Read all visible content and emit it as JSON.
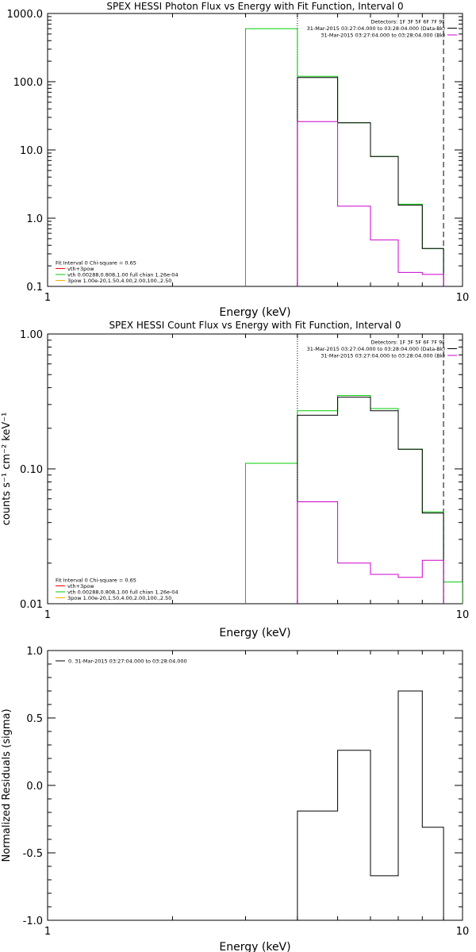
{
  "chart_data": [
    {
      "type": "line",
      "title": "SPEX HESSI Photon Flux vs Energy with Fit Function, Interval 0",
      "xlabel": "Energy (keV)",
      "ylabel": "",
      "xlim": [
        1,
        10
      ],
      "ylim": [
        0.1,
        1000
      ],
      "x_scale": "log",
      "y_scale": "log",
      "x_ticks": [
        {
          "v": 1,
          "label": "1"
        },
        {
          "v": 10,
          "label": "10"
        }
      ],
      "y_ticks": [
        {
          "v": 0.1,
          "label": "0.1"
        },
        {
          "v": 1,
          "label": "1.0"
        },
        {
          "v": 10,
          "label": "10.0"
        },
        {
          "v": 100,
          "label": "100.0"
        },
        {
          "v": 1000,
          "label": "1000.0"
        }
      ],
      "vlines": [
        {
          "x": 4.0,
          "style": "dotted"
        },
        {
          "x": 9.0,
          "style": "dashed"
        }
      ],
      "legend_top": {
        "position": "top-right",
        "lines": [
          {
            "text": "Detectors: 1F 3F 5F 6F 7F 9F",
            "color": ""
          },
          {
            "text": "31-Mar-2015 03:27:04.000 to 03:28:04.000 (Data-Bk)",
            "color": "#000000"
          },
          {
            "text": "31-Mar-2015 03:27:04.000 to 03:28:04.000 (Bk)",
            "color": "#cc00cc"
          }
        ]
      },
      "legend_bottom": {
        "position": "bottom-left",
        "lines": [
          {
            "text": "Fit Interval 0   Chi-square = 0.65",
            "color": ""
          },
          {
            "text": "vth+3pow",
            "color": "#ff0000"
          },
          {
            "text": "vth 0.00288,0.808,1.00  full chian 1.26e-04",
            "color": "#00cc00"
          },
          {
            "text": "3pow 1.00e-20,1.50,4.00,2.00,100.,2.50",
            "color": "#ffaa00"
          }
        ]
      },
      "series": [
        {
          "color": "#00cc00",
          "edges": [
            3.0,
            4.0,
            5.0,
            6.0,
            7.0,
            8.0,
            9.0
          ],
          "values": [
            600,
            120,
            25,
            8,
            1.6,
            0.36
          ]
        },
        {
          "color": "#000000",
          "edges": [
            4.0,
            5.0,
            6.0,
            7.0,
            8.0,
            9.0
          ],
          "values": [
            115,
            25,
            8,
            1.55,
            0.36
          ]
        },
        {
          "color": "#cc00cc",
          "edges": [
            4.0,
            5.0,
            6.0,
            7.0,
            8.0,
            9.0
          ],
          "values": [
            26,
            1.5,
            0.48,
            0.16,
            0.15
          ]
        }
      ]
    },
    {
      "type": "line",
      "title": "SPEX HESSI Count Flux vs Energy with Fit Function, Interval 0",
      "xlabel": "Energy (keV)",
      "ylabel": "counts s⁻¹ cm⁻² keV⁻¹",
      "xlim": [
        1,
        10
      ],
      "ylim": [
        0.01,
        1.0
      ],
      "x_scale": "log",
      "y_scale": "log",
      "x_ticks": [
        {
          "v": 1,
          "label": "1"
        },
        {
          "v": 10,
          "label": "10"
        }
      ],
      "y_ticks": [
        {
          "v": 0.01,
          "label": "0.01"
        },
        {
          "v": 0.1,
          "label": "0.10"
        },
        {
          "v": 1,
          "label": "1.00"
        }
      ],
      "vlines": [
        {
          "x": 4.0,
          "style": "dotted"
        },
        {
          "x": 9.0,
          "style": "dashed"
        }
      ],
      "legend_top": {
        "position": "top-right",
        "lines": [
          {
            "text": "Detectors: 1F 3F 5F 6F 7F 9F",
            "color": ""
          },
          {
            "text": "31-Mar-2015 03:27:04.000 to 03:28:04.000 (Data-Bk)",
            "color": "#000000"
          },
          {
            "text": "31-Mar-2015 03:27:04.000 to 03:28:04.000 (Bk)",
            "color": "#cc00cc"
          }
        ]
      },
      "legend_bottom": {
        "position": "bottom-left",
        "lines": [
          {
            "text": "Fit Interval 0   Chi-square = 0.65",
            "color": ""
          },
          {
            "text": "vth+3pow",
            "color": "#ff0000"
          },
          {
            "text": "vth 0.00288,0.808,1.00  full chian 1.26e-04",
            "color": "#00cc00"
          },
          {
            "text": "3pow 1.00e-20,1.50,4.00,2.00,100.,2.50",
            "color": "#ffaa00"
          }
        ]
      },
      "series": [
        {
          "color": "#00cc00",
          "edges": [
            3.0,
            4.0,
            5.0,
            6.0,
            7.0,
            8.0,
            9.0,
            10.0
          ],
          "values": [
            0.11,
            0.27,
            0.35,
            0.28,
            0.14,
            0.048,
            0.0145
          ]
        },
        {
          "color": "#000000",
          "edges": [
            4.0,
            5.0,
            6.0,
            7.0,
            8.0,
            9.0
          ],
          "values": [
            0.25,
            0.34,
            0.27,
            0.14,
            0.047
          ]
        },
        {
          "color": "#cc00cc",
          "edges": [
            4.0,
            5.0,
            6.0,
            7.0,
            8.0,
            9.0
          ],
          "values": [
            0.057,
            0.02,
            0.0165,
            0.0157,
            0.021
          ]
        }
      ]
    },
    {
      "type": "line",
      "title": "",
      "xlabel": "Energy (keV)",
      "ylabel": "Normalized Residuals (sigma)",
      "xlim": [
        1,
        10
      ],
      "ylim": [
        -1.0,
        1.0
      ],
      "x_scale": "log",
      "y_scale": "linear",
      "x_ticks": [
        {
          "v": 1,
          "label": "1"
        },
        {
          "v": 10,
          "label": "10"
        }
      ],
      "y_ticks": [
        {
          "v": -1.0,
          "label": "-1.0"
        },
        {
          "v": -0.5,
          "label": "-0.5"
        },
        {
          "v": 0.0,
          "label": "0.0"
        },
        {
          "v": 0.5,
          "label": "0.5"
        },
        {
          "v": 1.0,
          "label": "1.0"
        }
      ],
      "vlines": [],
      "legend_top": {
        "position": "top-left",
        "lines": [
          {
            "text": "0. 31-Mar-2015 03:27:04.000 to 03:28:04.000",
            "color": "#000000"
          }
        ]
      },
      "legend_bottom": {
        "position": "bottom-left",
        "lines": []
      },
      "series": [
        {
          "color": "#000000",
          "edges": [
            4.0,
            5.0,
            6.0,
            7.0,
            8.0,
            9.0
          ],
          "values": [
            -0.19,
            0.26,
            -0.67,
            0.7,
            -0.31
          ],
          "drop_to_bottom": true
        }
      ]
    }
  ]
}
